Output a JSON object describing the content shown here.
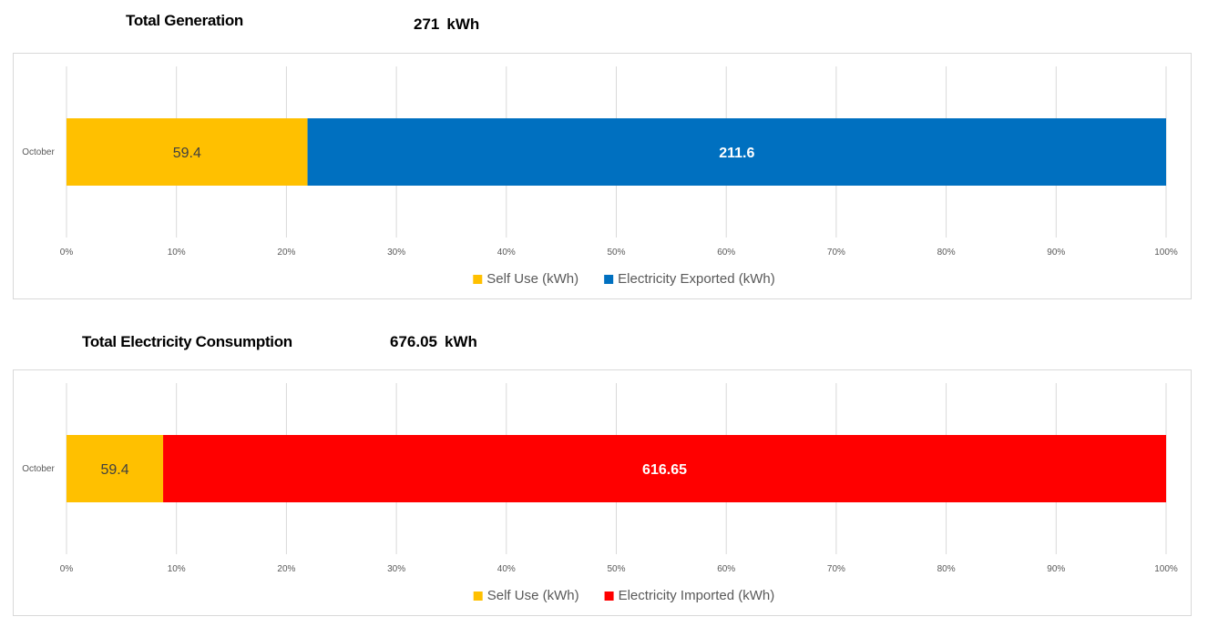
{
  "charts": [
    {
      "title": "Total Generation",
      "total_value": "271",
      "total_unit": "kWh",
      "legend": [
        {
          "label": "Self Use (kWh)",
          "color": "#FFC000"
        },
        {
          "label": "Electricity Exported (kWh)",
          "color": "#0070C0"
        }
      ]
    },
    {
      "title": "Total Electricity Consumption",
      "total_value": "676.05",
      "total_unit": "kWh",
      "legend": [
        {
          "label": "Self Use (kWh)",
          "color": "#FFC000"
        },
        {
          "label": "Electricity Imported (kWh)",
          "color": "#FF0000"
        }
      ]
    }
  ],
  "chart_data": [
    {
      "type": "bar",
      "orientation": "horizontal",
      "stacking": "100% stacked",
      "categories": [
        "October"
      ],
      "series": [
        {
          "name": "Self Use (kWh)",
          "values": [
            59.4
          ],
          "color": "#FFC000",
          "label_color": "#404040"
        },
        {
          "name": "Electricity Exported (kWh)",
          "values": [
            211.6
          ],
          "color": "#0070C0",
          "label_color": "#ffffff"
        }
      ],
      "x_ticks": [
        "0%",
        "10%",
        "20%",
        "30%",
        "40%",
        "50%",
        "60%",
        "70%",
        "80%",
        "90%",
        "100%"
      ],
      "xlim": [
        0,
        100
      ],
      "grid": true,
      "legend_position": "bottom"
    },
    {
      "type": "bar",
      "orientation": "horizontal",
      "stacking": "100% stacked",
      "categories": [
        "October"
      ],
      "series": [
        {
          "name": "Self Use (kWh)",
          "values": [
            59.4
          ],
          "color": "#FFC000",
          "label_color": "#404040"
        },
        {
          "name": "Electricity Imported (kWh)",
          "values": [
            616.65
          ],
          "color": "#FF0000",
          "label_color": "#ffffff"
        }
      ],
      "x_ticks": [
        "0%",
        "10%",
        "20%",
        "30%",
        "40%",
        "50%",
        "60%",
        "70%",
        "80%",
        "90%",
        "100%"
      ],
      "xlim": [
        0,
        100
      ],
      "grid": true,
      "legend_position": "bottom"
    }
  ]
}
